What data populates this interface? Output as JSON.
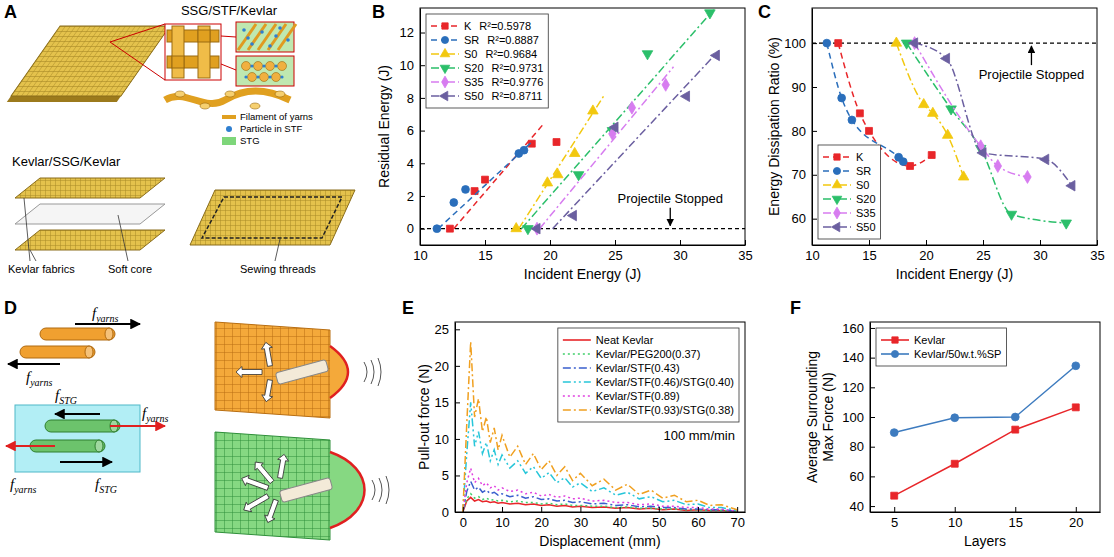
{
  "chart_data": [
    {
      "panel": "B",
      "type": "scatter",
      "x_label": "Incident Energy (J)",
      "y_label": "Residual Energy (J)",
      "xlim": [
        10,
        35
      ],
      "ylim": [
        -1,
        13.5
      ],
      "xticks": [
        10,
        15,
        20,
        25,
        30,
        35
      ],
      "yticks": [
        0,
        2,
        4,
        6,
        8,
        10,
        12
      ],
      "legend": "top-left",
      "annotation": "Projectile Stopped",
      "reference_line": 0,
      "series": [
        {
          "name": "K",
          "note": "R²=0.5978",
          "color": "#e8262a",
          "marker": "square",
          "line_style": "dashed",
          "x": [
            12.3,
            14.2,
            15.0,
            18.6,
            20.5
          ],
          "values": [
            0,
            2.3,
            3.0,
            5.2,
            5.3
          ],
          "fit_x": [
            12.6,
            19.6
          ],
          "fit_y": [
            0,
            6.5
          ]
        },
        {
          "name": "SR",
          "note": "R²=0.8887",
          "color": "#2a6ebb",
          "marker": "circle",
          "line_style": "dashed",
          "x": [
            11.3,
            12.6,
            13.5,
            17.6,
            18.0
          ],
          "values": [
            0,
            1.6,
            2.4,
            4.6,
            4.8
          ],
          "fit_x": [
            11.4,
            18.6
          ],
          "fit_y": [
            0,
            5.3
          ]
        },
        {
          "name": "S0",
          "note": "R²=0.9684",
          "color": "#f2c80f",
          "marker": "triangle-up",
          "line_style": "dash-dot",
          "x": [
            17.4,
            19.8,
            20.6,
            21.9,
            23.3
          ],
          "values": [
            0,
            2.8,
            3.3,
            4.6,
            7.2
          ],
          "fit_x": [
            17.6,
            24.2
          ],
          "fit_y": [
            0,
            8.2
          ]
        },
        {
          "name": "S20",
          "note": "R²=0.9731",
          "color": "#2bbf6a",
          "marker": "triangle-down",
          "line_style": "dash-dot",
          "x": [
            18.3,
            22.2,
            24.8,
            27.5,
            32.3
          ],
          "values": [
            0,
            3.3,
            6.0,
            10.7,
            13.2
          ],
          "fit_x": [
            17.8,
            32.6
          ],
          "fit_y": [
            0,
            13.4
          ]
        },
        {
          "name": "S35",
          "note": "R²=0.9776",
          "color": "#d77cf0",
          "marker": "diamond",
          "line_style": "dash-dot",
          "x": [
            19.0,
            24.8,
            26.3,
            28.9
          ],
          "values": [
            0,
            5.8,
            7.4,
            8.8
          ],
          "fit_x": [
            19.2,
            29.5
          ],
          "fit_y": [
            0,
            9.9
          ]
        },
        {
          "name": "S50",
          "note": "R²=0.8711",
          "color": "#6b5fa0",
          "marker": "triangle-left",
          "line_style": "dash-dot",
          "x": [
            19.0,
            21.8,
            25.0,
            30.5,
            32.8
          ],
          "values": [
            0,
            0.8,
            6.2,
            8.1,
            10.6
          ],
          "fit_x": [
            20.2,
            33.0
          ],
          "fit_y": [
            0,
            10.9
          ]
        }
      ]
    },
    {
      "panel": "C",
      "type": "line",
      "x_label": "Incident Energy (J)",
      "y_label": "Energy Dissipation Ratio (%)",
      "xlim": [
        10,
        35
      ],
      "ylim": [
        54,
        108
      ],
      "xticks": [
        10,
        15,
        20,
        25,
        30,
        35
      ],
      "yticks": [
        60,
        70,
        80,
        90,
        100
      ],
      "legend": "bottom-left",
      "annotation": "Projectile Stopped",
      "reference_line": 100,
      "series": [
        {
          "name": "K",
          "color": "#e8262a",
          "marker": "square",
          "line_style": "dashed",
          "x": [
            12.3,
            14.2,
            15.0,
            18.6,
            20.5
          ],
          "values": [
            100,
            84,
            80,
            72,
            74.5
          ]
        },
        {
          "name": "SR",
          "color": "#2a6ebb",
          "marker": "circle",
          "line_style": "dashed",
          "x": [
            11.3,
            12.6,
            13.5,
            17.6,
            18.0
          ],
          "values": [
            100,
            87.5,
            82.5,
            74,
            73
          ]
        },
        {
          "name": "S0",
          "color": "#f2c80f",
          "marker": "triangle-up",
          "line_style": "dash-dot",
          "x": [
            17.4,
            19.8,
            20.6,
            21.9,
            23.3
          ],
          "values": [
            100,
            86,
            84,
            79,
            69.5
          ]
        },
        {
          "name": "S20",
          "color": "#2bbf6a",
          "marker": "triangle-down",
          "line_style": "dash-dot",
          "x": [
            18.3,
            22.2,
            24.8,
            27.5,
            32.3
          ],
          "values": [
            100,
            85,
            76,
            61,
            59
          ]
        },
        {
          "name": "S35",
          "color": "#d77cf0",
          "marker": "diamond",
          "line_style": "dash-dot",
          "x": [
            19.0,
            24.8,
            26.3,
            28.9
          ],
          "values": [
            100,
            76.5,
            72,
            69.5
          ]
        },
        {
          "name": "S50",
          "color": "#6b5fa0",
          "marker": "triangle-left",
          "line_style": "dash-dot",
          "x": [
            19.0,
            21.8,
            25.0,
            30.5,
            32.8
          ],
          "values": [
            100,
            96.5,
            75,
            73.5,
            67.5
          ]
        }
      ]
    },
    {
      "panel": "E",
      "type": "line",
      "x_label": "Displacement (mm)",
      "y_label": "Pull-out force (N)",
      "xlim": [
        -2,
        72
      ],
      "ylim": [
        0,
        26
      ],
      "xticks": [
        0,
        10,
        20,
        30,
        40,
        50,
        60,
        70
      ],
      "yticks": [
        0,
        5,
        10,
        15,
        20,
        25
      ],
      "legend": "top-right",
      "annotation": "100 mm/min",
      "x": [
        0,
        1,
        2,
        3,
        4,
        5,
        6,
        7,
        8,
        9,
        10,
        12,
        14,
        16,
        18,
        20,
        22,
        24,
        26,
        28,
        30,
        33,
        36,
        39,
        42,
        45,
        48,
        51,
        54,
        57,
        60,
        63,
        66,
        70
      ],
      "series": [
        {
          "name": "Neat Kevlar",
          "color": "#e8262a",
          "line_style": "solid",
          "values": [
            0,
            1.5,
            2,
            1.5,
            1.7,
            1.4,
            1.5,
            1.3,
            1.4,
            1.2,
            1.3,
            1.1,
            1.2,
            1,
            1.1,
            0.9,
            1,
            0.8,
            0.9,
            0.7,
            0.8,
            0.6,
            0.7,
            0.5,
            0.6,
            0.4,
            0.5,
            0.3,
            0.4,
            0.2,
            0.3,
            0.2,
            0.2,
            0.1
          ]
        },
        {
          "name": "Kevlar/PEG200(0.37)",
          "color": "#3fcf6a",
          "line_style": "dotted",
          "values": [
            0,
            1.8,
            2.5,
            1.9,
            2.1,
            1.7,
            1.9,
            1.6,
            1.7,
            1.5,
            1.6,
            1.4,
            1.5,
            1.3,
            1.3,
            1.1,
            1.2,
            1,
            1.1,
            0.9,
            0.9,
            0.8,
            0.8,
            0.6,
            0.7,
            0.5,
            0.5,
            0.4,
            0.4,
            0.3,
            0.3,
            0.2,
            0.2,
            0.1
          ]
        },
        {
          "name": "Kevlar/STF(0.43)",
          "color": "#3a5fcd",
          "line_style": "dash-dot",
          "values": [
            0,
            2.8,
            4.2,
            3,
            3.4,
            2.7,
            3,
            2.5,
            2.7,
            2.3,
            2.5,
            2.1,
            2.3,
            1.9,
            2.1,
            1.7,
            1.8,
            1.5,
            1.6,
            1.3,
            1.4,
            1.1,
            1.2,
            0.9,
            1,
            0.7,
            0.8,
            0.6,
            0.6,
            0.4,
            0.4,
            0.3,
            0.3,
            0.1
          ]
        },
        {
          "name": "Kevlar/STF(0.46)/STG(0.40)",
          "color": "#27c6d9",
          "line_style": "dash-dot-dot",
          "values": [
            0,
            8,
            15,
            9,
            11,
            8,
            9.5,
            7,
            8.5,
            6.5,
            7.8,
            6,
            7,
            5.3,
            6.2,
            4.6,
            5.4,
            4,
            4.7,
            3.4,
            4,
            2.8,
            3.3,
            2.3,
            2.7,
            1.8,
            2.1,
            1.4,
            1.6,
            1,
            1.1,
            0.6,
            0.6,
            0.2
          ]
        },
        {
          "name": "Kevlar/STF(0.89)",
          "color": "#e040e0",
          "line_style": "dotted",
          "values": [
            0,
            4,
            6,
            4,
            4.6,
            3.6,
            4,
            3.3,
            3.6,
            3,
            3.3,
            2.8,
            3,
            2.5,
            2.7,
            2.2,
            2.4,
            2,
            2.2,
            1.8,
            1.9,
            1.5,
            1.6,
            1.3,
            1.3,
            1,
            1.1,
            0.8,
            0.8,
            0.6,
            0.6,
            0.4,
            0.4,
            0.1
          ]
        },
        {
          "name": "Kevlar/STF(0.93)/STG(0.38)",
          "color": "#f0a020",
          "line_style": "dash-dot",
          "values": [
            0,
            12,
            23.3,
            13,
            15.5,
            11,
            13,
            9.5,
            11.5,
            8.5,
            10.5,
            7.5,
            9,
            6.5,
            8,
            5.8,
            7,
            5,
            6.2,
            4.3,
            5.3,
            3.6,
            4.5,
            3,
            3.8,
            2.4,
            3,
            1.9,
            2.3,
            1.4,
            1.6,
            0.9,
            1,
            0.3
          ]
        }
      ]
    },
    {
      "panel": "F",
      "type": "line",
      "x_label": "Layers",
      "y_label": "Average Surrounding Max Force (N)",
      "xlim": [
        3,
        22
      ],
      "ylim": [
        36,
        164
      ],
      "xticks": [
        5,
        10,
        15,
        20
      ],
      "yticks": [
        40,
        60,
        80,
        100,
        120,
        140,
        160
      ],
      "legend": "top-left",
      "x": [
        5,
        10,
        15,
        20
      ],
      "series": [
        {
          "name": "Kevlar",
          "color": "#e8262a",
          "marker": "square",
          "line_style": "solid",
          "values": [
            47,
            68.5,
            91.5,
            106.5
          ]
        },
        {
          "name": "Kevlar/50w.t.%SP",
          "color": "#3d7bbf",
          "marker": "circle",
          "line_style": "solid",
          "values": [
            89.5,
            99.5,
            100,
            134.5
          ]
        }
      ]
    }
  ],
  "diagram_a": {
    "panel": "A",
    "title_top": "SSG/STF/Kevlar",
    "key_items": [
      "Filament of yarns",
      "Particle in STF",
      "STG"
    ],
    "title_bottom": "Kevlar/SSG/Kevlar",
    "labels": [
      "Kevlar fabrics",
      "Soft core",
      "Sewing threads"
    ]
  },
  "diagram_d": {
    "panel": "D",
    "force_labels": [
      {
        "symbol": "f",
        "subscript": "yarns"
      },
      {
        "symbol": "f",
        "subscript": "yarns"
      },
      {
        "symbol": "f",
        "subscript": "STG"
      },
      {
        "symbol": "f",
        "subscript": "yarns"
      },
      {
        "symbol": "f",
        "subscript": "yarns"
      },
      {
        "symbol": "f",
        "subscript": "STG"
      }
    ]
  }
}
